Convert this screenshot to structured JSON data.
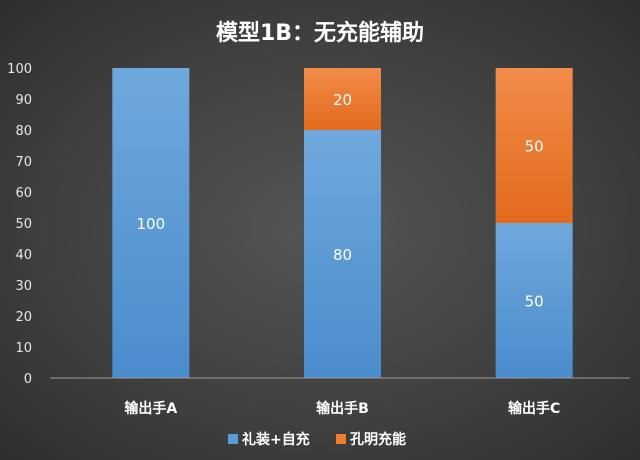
{
  "chart_data": {
    "type": "bar",
    "stacked": true,
    "title": "模型1B：无充能辅助",
    "categories": [
      "输出手A",
      "输出手B",
      "输出手C"
    ],
    "series": [
      {
        "name": "礼装+自充",
        "values": [
          100,
          80,
          50
        ],
        "color": "#5b9bd5"
      },
      {
        "name": "孔明充能",
        "values": [
          0,
          20,
          50
        ],
        "color": "#ed7d31"
      }
    ],
    "ylim": [
      0,
      100
    ],
    "yticks": [
      0,
      10,
      20,
      30,
      40,
      50,
      60,
      70,
      80,
      90,
      100
    ],
    "grid": false,
    "legend_position": "bottom",
    "data_labels": true
  }
}
